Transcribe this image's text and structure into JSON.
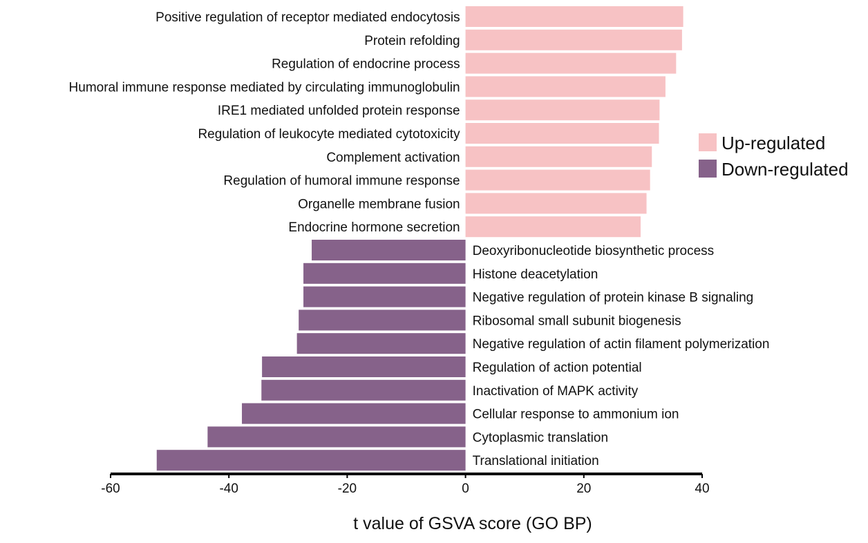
{
  "chart_data": {
    "type": "bar",
    "orientation": "horizontal",
    "title": "",
    "xlabel": "t value of GSVA score (GO BP)",
    "ylabel": "",
    "xlim": [
      -60,
      40
    ],
    "xticks": [
      -60,
      -40,
      -20,
      0,
      20,
      40
    ],
    "grid": false,
    "legend": {
      "placement": "right",
      "entries": [
        {
          "name": "Up-regulated",
          "color": "#f7c2c4"
        },
        {
          "name": "Down-regulated",
          "color": "#86628a"
        }
      ]
    },
    "series": [
      {
        "name": "Up-regulated",
        "color": "#f7c2c4",
        "categories": [
          "Positive regulation of receptor mediated endocytosis",
          "Protein refolding",
          "Regulation of endocrine process",
          "Humoral immune response mediated by circulating immunoglobulin",
          "IRE1 mediated unfolded protein response",
          "Regulation of leukocyte mediated cytotoxicity",
          "Complement activation",
          "Regulation of humoral immune response",
          "Organelle membrane fusion",
          "Endocrine hormone secretion"
        ],
        "values": [
          36.8,
          36.6,
          35.6,
          33.8,
          32.8,
          32.7,
          31.5,
          31.2,
          30.6,
          29.6
        ]
      },
      {
        "name": "Down-regulated",
        "color": "#86628a",
        "categories": [
          "Deoxyribonucleotide biosynthetic process",
          "Histone deacetylation",
          "Negative regulation of protein kinase B signaling",
          "Ribosomal small subunit biogenesis",
          "Negative regulation of actin filament polymerization",
          "Regulation of action potential",
          "Inactivation of MAPK activity",
          "Cellular response to ammonium ion",
          "Cytoplasmic translation",
          "Translational initiation"
        ],
        "values": [
          -26.0,
          -27.4,
          -27.4,
          -28.2,
          -28.5,
          -34.4,
          -34.5,
          -37.8,
          -43.6,
          -52.2
        ]
      }
    ]
  }
}
